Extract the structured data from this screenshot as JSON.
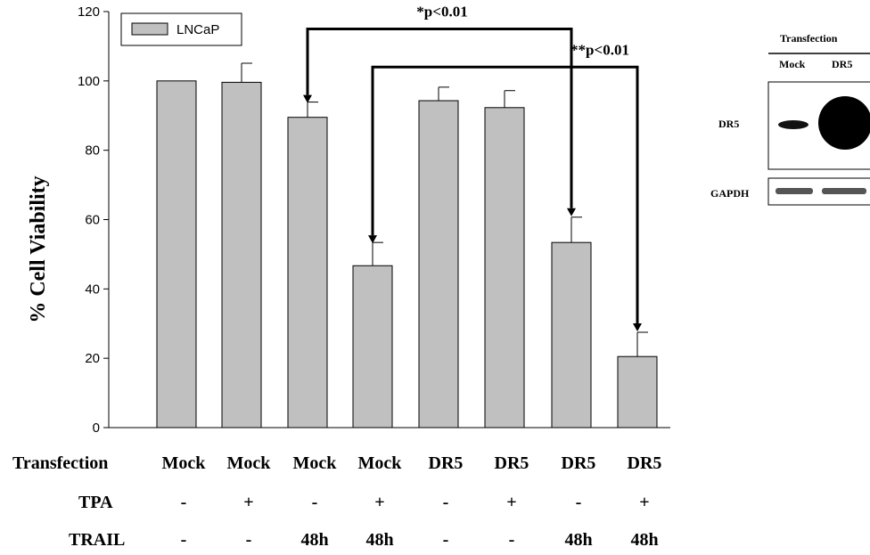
{
  "chart_data": {
    "type": "bar",
    "ylabel": "% Cell Viability",
    "ylim": [
      0,
      120
    ],
    "yticks": [
      0,
      20,
      40,
      60,
      80,
      100,
      120
    ],
    "legend": {
      "entries": [
        "LNCaP"
      ],
      "placement": "top-left"
    },
    "series": [
      {
        "name": "LNCaP",
        "color": "#c0c0c0",
        "values": [
          100,
          99.6,
          89.5,
          46.7,
          94.3,
          92.3,
          53.4,
          20.5
        ],
        "errors": [
          0,
          5.5,
          4.4,
          6.7,
          3.9,
          4.9,
          7.3,
          7.0
        ]
      }
    ],
    "row_labels": [
      "Transfection",
      "TPA",
      "TRAIL"
    ],
    "conditions": [
      {
        "transfection": "Mock",
        "tpa": "-",
        "trail": "-"
      },
      {
        "transfection": "Mock",
        "tpa": "+",
        "trail": "-"
      },
      {
        "transfection": "Mock",
        "tpa": "-",
        "trail": "48h"
      },
      {
        "transfection": "Mock",
        "tpa": "+",
        "trail": "48h"
      },
      {
        "transfection": "DR5",
        "tpa": "-",
        "trail": "-"
      },
      {
        "transfection": "DR5",
        "tpa": "+",
        "trail": "-"
      },
      {
        "transfection": "DR5",
        "tpa": "-",
        "trail": "48h"
      },
      {
        "transfection": "DR5",
        "tpa": "+",
        "trail": "48h"
      }
    ],
    "annotations": [
      {
        "text": "*p<0.01",
        "from_bar": 3,
        "to_bar": 7,
        "bracket_y": 115
      },
      {
        "text": "**p<0.01",
        "from_bar": 4,
        "to_bar": 8,
        "bracket_y": 104
      }
    ]
  },
  "western_blot": {
    "header": "Transfection",
    "lanes": [
      "Mock",
      "DR5"
    ],
    "rows": [
      "DR5",
      "GAPDH"
    ]
  }
}
